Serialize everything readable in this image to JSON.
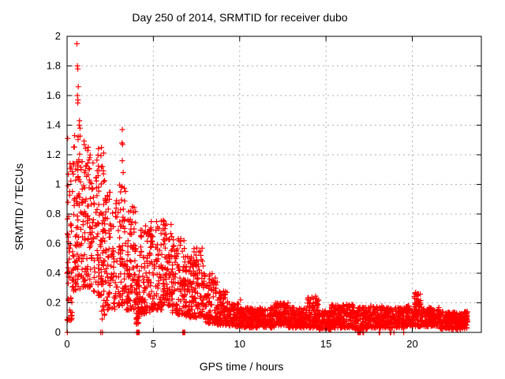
{
  "chart_data": {
    "type": "scatter",
    "title": "Day 250 of 2014, SRMTID for receiver dubo",
    "xlabel": "GPS time / hours",
    "ylabel": "SRMTID / TECUs",
    "xlim": [
      0,
      24
    ],
    "ylim": [
      0,
      2
    ],
    "xticks": [
      0,
      5,
      10,
      15,
      20
    ],
    "xtick_labels": [
      "0",
      "5",
      "10",
      "15",
      "20"
    ],
    "yticks": [
      0,
      0.2,
      0.4,
      0.6,
      0.8,
      1.0,
      1.2,
      1.4,
      1.6,
      1.8,
      2.0
    ],
    "ytick_labels": [
      "0",
      "0.2",
      "0.4",
      "0.6",
      "0.8",
      "1",
      "1.2",
      "1.4",
      "1.6",
      "1.8",
      "2"
    ],
    "grid": true,
    "grid_color": "#b0b0b0",
    "axis_color": "#000000",
    "background_color": "#ffffff",
    "legend": "none",
    "marker": {
      "shape": "plus",
      "color": "#ff0000",
      "size": 7,
      "stroke_width": 1.2
    },
    "point_synthesis": {
      "seed": 42,
      "segments": [
        [
          0.0,
          0.3,
          0.08,
          1.32,
          55,
          1.8
        ],
        [
          0.3,
          0.9,
          0.28,
          1.34,
          95,
          1.5
        ],
        [
          0.9,
          1.5,
          0.3,
          1.3,
          95,
          1.5
        ],
        [
          1.5,
          2.0,
          0.25,
          1.28,
          75,
          1.5
        ],
        [
          2.0,
          2.2,
          0.08,
          1.25,
          40,
          1.4
        ],
        [
          2.2,
          2.9,
          0.15,
          0.95,
          90,
          1.5
        ],
        [
          2.9,
          3.4,
          0.18,
          1.0,
          70,
          1.5
        ],
        [
          3.4,
          4.0,
          0.15,
          0.85,
          90,
          1.6
        ],
        [
          4.0,
          4.2,
          0.05,
          0.45,
          45,
          1.3
        ],
        [
          4.2,
          4.8,
          0.12,
          0.72,
          85,
          1.5
        ],
        [
          4.8,
          5.5,
          0.15,
          0.76,
          85,
          1.5
        ],
        [
          5.5,
          6.1,
          0.18,
          0.78,
          85,
          1.5
        ],
        [
          6.1,
          6.8,
          0.12,
          0.64,
          90,
          1.5
        ],
        [
          6.8,
          7.3,
          0.1,
          0.52,
          80,
          1.4
        ],
        [
          7.3,
          8.0,
          0.1,
          0.58,
          100,
          1.4
        ],
        [
          8.0,
          8.7,
          0.06,
          0.4,
          90,
          1.5
        ],
        [
          8.7,
          9.3,
          0.05,
          0.28,
          90,
          1.4
        ],
        [
          9.3,
          10.0,
          0.04,
          0.2,
          95,
          1.3
        ],
        [
          10.0,
          12.0,
          0.03,
          0.17,
          270,
          1.2
        ],
        [
          12.0,
          12.8,
          0.04,
          0.2,
          110,
          1.2
        ],
        [
          12.8,
          13.9,
          0.03,
          0.17,
          150,
          1.2
        ],
        [
          13.9,
          14.6,
          0.03,
          0.24,
          110,
          1.3
        ],
        [
          14.6,
          15.3,
          0.02,
          0.15,
          95,
          1.2
        ],
        [
          15.3,
          16.6,
          0.03,
          0.19,
          175,
          1.2
        ],
        [
          16.6,
          17.4,
          0.02,
          0.17,
          100,
          1.2
        ],
        [
          17.4,
          18.6,
          0.03,
          0.18,
          160,
          1.2
        ],
        [
          18.6,
          19.6,
          0.03,
          0.17,
          130,
          1.2
        ],
        [
          19.6,
          20.1,
          0.04,
          0.18,
          70,
          1.2
        ],
        [
          20.1,
          20.5,
          0.04,
          0.27,
          65,
          1.3
        ],
        [
          20.5,
          21.6,
          0.04,
          0.17,
          150,
          1.2
        ],
        [
          21.6,
          23.2,
          0.02,
          0.14,
          240,
          1.1
        ]
      ],
      "outliers": [
        [
          0.57,
          1.95
        ],
        [
          0.6,
          1.8
        ],
        [
          0.62,
          1.78
        ],
        [
          0.65,
          1.66
        ],
        [
          0.6,
          1.6
        ],
        [
          0.63,
          1.57
        ],
        [
          0.62,
          1.55
        ],
        [
          0.72,
          1.43
        ],
        [
          0.7,
          1.4
        ],
        [
          0.75,
          1.38
        ],
        [
          3.2,
          1.37
        ],
        [
          3.18,
          1.28
        ],
        [
          3.22,
          1.27
        ],
        [
          3.2,
          1.16
        ],
        [
          3.25,
          1.08
        ],
        [
          3.16,
          0.98
        ],
        [
          4.65,
          0.68
        ],
        [
          4.7,
          0.65
        ],
        [
          10.05,
          0.22
        ],
        [
          12.55,
          0.19
        ],
        [
          14.4,
          0.245
        ],
        [
          14.45,
          0.23
        ],
        [
          20.3,
          0.26
        ],
        [
          20.33,
          0.25
        ]
      ],
      "zero_values": [
        0.02,
        1.95,
        2.05,
        4.03,
        4.06,
        4.09,
        4.12,
        4.15,
        4.18,
        6.7,
        6.73,
        6.76,
        6.79,
        6.82,
        16.84,
        16.88,
        16.92,
        16.96,
        17.0,
        17.14,
        17.18,
        18.08,
        18.12,
        18.72,
        18.76,
        18.94,
        19.5
      ]
    }
  }
}
